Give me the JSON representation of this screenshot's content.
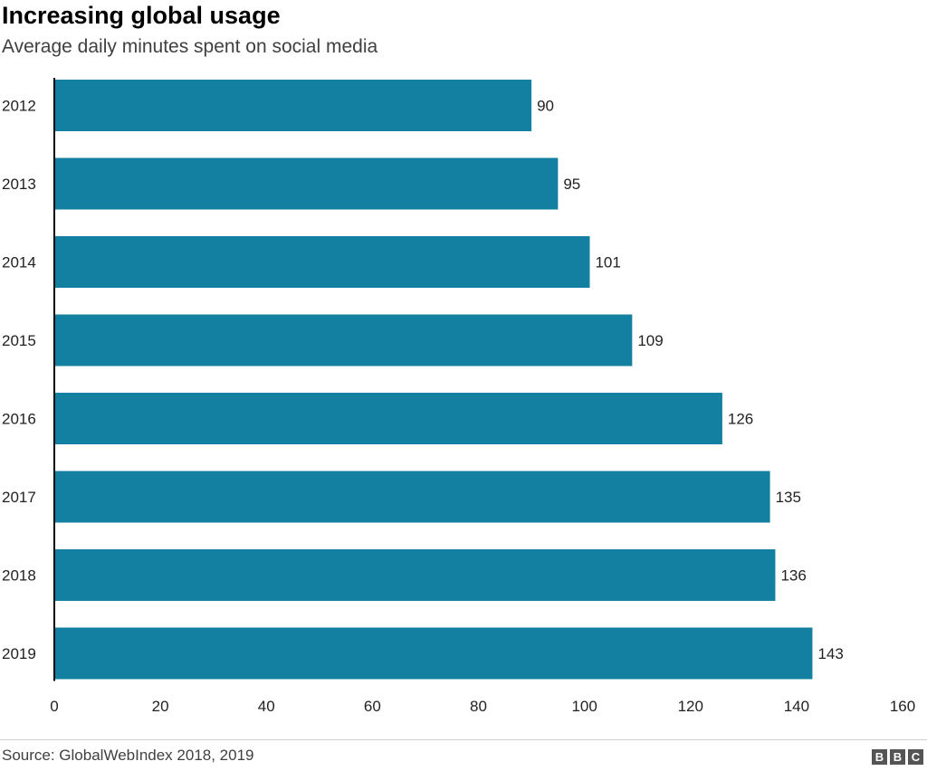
{
  "chart_data": {
    "type": "bar",
    "orientation": "horizontal",
    "title": "Increasing global usage",
    "subtitle": "Average daily minutes spent on social media",
    "categories": [
      "2012",
      "2013",
      "2014",
      "2015",
      "2016",
      "2017",
      "2018",
      "2019"
    ],
    "values": [
      90,
      95,
      101,
      109,
      126,
      135,
      136,
      143
    ],
    "xlim": [
      0,
      160
    ],
    "xticks": [
      0,
      20,
      40,
      60,
      80,
      100,
      120,
      140,
      160
    ],
    "grid": false,
    "bar_color": "#1380a1"
  },
  "source": "Source: GlobalWebIndex 2018, 2019",
  "brand": [
    "B",
    "B",
    "C"
  ]
}
